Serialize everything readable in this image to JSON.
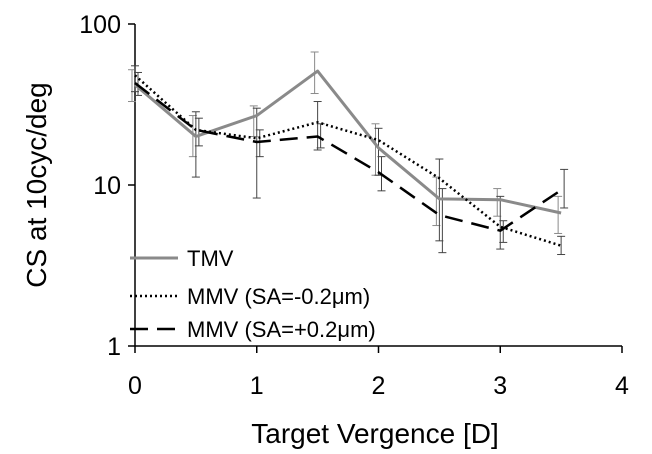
{
  "chart_data": {
    "type": "line",
    "title": "",
    "xlabel": "Target Vergence [D]",
    "ylabel": "CS at 10cyc/deg",
    "xlim": [
      0,
      4
    ],
    "ylim": [
      1,
      100
    ],
    "yscale": "log",
    "x_ticks": [
      0,
      1,
      2,
      3,
      4
    ],
    "x_tick_labels": [
      "0",
      "1",
      "2",
      "3",
      "4"
    ],
    "y_ticks": [
      1,
      10,
      100
    ],
    "y_tick_labels": [
      "1",
      "10",
      "100"
    ],
    "grid": false,
    "legend_position": "bottom-left",
    "x": [
      0,
      0.5,
      1,
      1.5,
      2,
      2.5,
      3,
      3.5
    ],
    "series": [
      {
        "name": "TMV",
        "style": "solid",
        "color": "#8a8a8a",
        "values": [
          42,
          20,
          27,
          51,
          17,
          8.2,
          8.1,
          6.7
        ],
        "error_low": [
          33,
          15,
          20,
          37,
          11.5,
          5.6,
          6.4,
          5.0
        ],
        "error_high": [
          52,
          27,
          31,
          67,
          24,
          11.2,
          9.5,
          8.5
        ]
      },
      {
        "name": "MMV (SA=-0.2μm)",
        "style": "dotted",
        "color": "#000000",
        "values": [
          48,
          22,
          19.5,
          24.5,
          19,
          11,
          5.5,
          4.2
        ],
        "error_low": [
          38,
          11.2,
          8.3,
          16.5,
          11.5,
          4.5,
          4.0,
          3.7
        ],
        "error_high": [
          55,
          28.5,
          30,
          33,
          22.5,
          14.5,
          8.5,
          4.8
        ]
      },
      {
        "name": "MMV (SA=+0.2μm)",
        "style": "dashed",
        "color": "#000000",
        "values": [
          43,
          22,
          18.5,
          20,
          12,
          6.5,
          5.2,
          9.3
        ],
        "error_low": [
          36,
          17.5,
          15,
          17,
          9.2,
          3.8,
          4.4,
          7.2
        ],
        "error_high": [
          50,
          26,
          22,
          24,
          15,
          9.5,
          6.0,
          12.5
        ]
      }
    ]
  }
}
